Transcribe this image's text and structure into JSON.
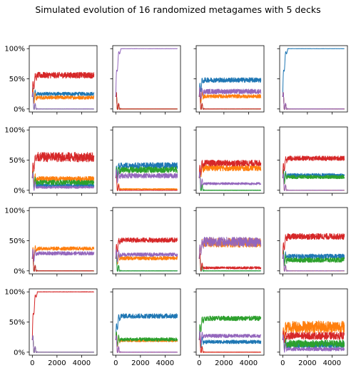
{
  "title": "Simulated evolution of 16 randomized metagames with 5 decks",
  "colors": {
    "blue": "#1f77b4",
    "orange": "#ff7f0e",
    "green": "#2ca02c",
    "red": "#d62728",
    "purple": "#9467bd"
  },
  "chart_data": {
    "type": "line",
    "layout": "4x4 grid",
    "shared_x": true,
    "shared_y": true,
    "xlim": [
      0,
      5000
    ],
    "ylim": [
      0,
      1
    ],
    "xticks": [
      0,
      2000,
      4000
    ],
    "yticks": [
      0,
      0.5,
      1
    ],
    "ytick_labels": [
      "0%",
      "50%",
      "100%"
    ],
    "grid": false,
    "legend": "none",
    "subplots": [
      {
        "row": 1,
        "col": 1,
        "series": [
          {
            "color": "blue",
            "level": 0.25,
            "noise": 0.03
          },
          {
            "color": "orange",
            "level": 0.19,
            "noise": 0.03
          },
          {
            "color": "green",
            "level": 0.0,
            "noise": 0.003
          },
          {
            "color": "red",
            "level": 0.56,
            "noise": 0.05
          },
          {
            "color": "purple",
            "level": 0.0,
            "noise": 0.003
          }
        ]
      },
      {
        "row": 1,
        "col": 2,
        "series": [
          {
            "color": "blue",
            "level": 0.0,
            "noise": 0.002
          },
          {
            "color": "orange",
            "level": 0.0,
            "noise": 0.002
          },
          {
            "color": "green",
            "level": 0.0,
            "noise": 0.002
          },
          {
            "color": "red",
            "level": 0.0,
            "noise": 0.002
          },
          {
            "color": "purple",
            "level": 1.0,
            "noise": 0.002
          }
        ]
      },
      {
        "row": 1,
        "col": 3,
        "series": [
          {
            "color": "blue",
            "level": 0.48,
            "noise": 0.04
          },
          {
            "color": "orange",
            "level": 0.21,
            "noise": 0.03
          },
          {
            "color": "green",
            "level": 0.0,
            "noise": 0.003
          },
          {
            "color": "red",
            "level": 0.0,
            "noise": 0.003
          },
          {
            "color": "purple",
            "level": 0.29,
            "noise": 0.04
          }
        ]
      },
      {
        "row": 1,
        "col": 4,
        "series": [
          {
            "color": "blue",
            "level": 1.0,
            "noise": 0.002
          },
          {
            "color": "orange",
            "level": 0.0,
            "noise": 0.002
          },
          {
            "color": "green",
            "level": 0.0,
            "noise": 0.002
          },
          {
            "color": "red",
            "level": 0.0,
            "noise": 0.002
          },
          {
            "color": "purple",
            "level": 0.0,
            "noise": 0.003
          }
        ]
      },
      {
        "row": 2,
        "col": 1,
        "series": [
          {
            "color": "blue",
            "level": 0.08,
            "noise": 0.03
          },
          {
            "color": "orange",
            "level": 0.19,
            "noise": 0.04
          },
          {
            "color": "green",
            "level": 0.13,
            "noise": 0.04
          },
          {
            "color": "red",
            "level": 0.55,
            "noise": 0.08
          },
          {
            "color": "purple",
            "level": 0.05,
            "noise": 0.02
          }
        ]
      },
      {
        "row": 2,
        "col": 2,
        "series": [
          {
            "color": "blue",
            "level": 0.41,
            "noise": 0.05
          },
          {
            "color": "orange",
            "level": 0.02,
            "noise": 0.01
          },
          {
            "color": "green",
            "level": 0.34,
            "noise": 0.05
          },
          {
            "color": "red",
            "level": 0.0,
            "noise": 0.003
          },
          {
            "color": "purple",
            "level": 0.24,
            "noise": 0.04
          }
        ]
      },
      {
        "row": 2,
        "col": 3,
        "series": [
          {
            "color": "blue",
            "level": 0.0,
            "noise": 0.003
          },
          {
            "color": "orange",
            "level": 0.37,
            "noise": 0.05
          },
          {
            "color": "green",
            "level": 0.0,
            "noise": 0.004
          },
          {
            "color": "red",
            "level": 0.45,
            "noise": 0.05
          },
          {
            "color": "purple",
            "level": 0.11,
            "noise": 0.02
          }
        ]
      },
      {
        "row": 2,
        "col": 4,
        "series": [
          {
            "color": "blue",
            "level": 0.25,
            "noise": 0.03
          },
          {
            "color": "orange",
            "level": 0.0,
            "noise": 0.003
          },
          {
            "color": "green",
            "level": 0.22,
            "noise": 0.03
          },
          {
            "color": "red",
            "level": 0.53,
            "noise": 0.04
          },
          {
            "color": "purple",
            "level": 0.0,
            "noise": 0.003
          }
        ]
      },
      {
        "row": 3,
        "col": 1,
        "series": [
          {
            "color": "blue",
            "level": 0.0,
            "noise": 0.003
          },
          {
            "color": "orange",
            "level": 0.37,
            "noise": 0.03
          },
          {
            "color": "green",
            "level": 0.0,
            "noise": 0.003
          },
          {
            "color": "red",
            "level": 0.0,
            "noise": 0.003
          },
          {
            "color": "purple",
            "level": 0.29,
            "noise": 0.03
          }
        ]
      },
      {
        "row": 3,
        "col": 2,
        "series": [
          {
            "color": "blue",
            "level": 0.0,
            "noise": 0.003
          },
          {
            "color": "orange",
            "level": 0.21,
            "noise": 0.03
          },
          {
            "color": "green",
            "level": 0.0,
            "noise": 0.003
          },
          {
            "color": "red",
            "level": 0.51,
            "noise": 0.04
          },
          {
            "color": "purple",
            "level": 0.27,
            "noise": 0.03
          }
        ]
      },
      {
        "row": 3,
        "col": 3,
        "series": [
          {
            "color": "blue",
            "level": 0.0,
            "noise": 0.003
          },
          {
            "color": "orange",
            "level": 0.47,
            "noise": 0.08
          },
          {
            "color": "green",
            "level": 0.0,
            "noise": 0.003
          },
          {
            "color": "red",
            "level": 0.05,
            "noise": 0.02
          },
          {
            "color": "purple",
            "level": 0.48,
            "noise": 0.08
          }
        ]
      },
      {
        "row": 3,
        "col": 4,
        "series": [
          {
            "color": "blue",
            "level": 0.24,
            "noise": 0.04
          },
          {
            "color": "orange",
            "level": 0.0,
            "noise": 0.003
          },
          {
            "color": "green",
            "level": 0.18,
            "noise": 0.04
          },
          {
            "color": "red",
            "level": 0.57,
            "noise": 0.05
          },
          {
            "color": "purple",
            "level": 0.0,
            "noise": 0.003
          }
        ]
      },
      {
        "row": 4,
        "col": 1,
        "series": [
          {
            "color": "blue",
            "level": 0.0,
            "noise": 0.002
          },
          {
            "color": "orange",
            "level": 0.0,
            "noise": 0.002
          },
          {
            "color": "green",
            "level": 0.0,
            "noise": 0.002
          },
          {
            "color": "red",
            "level": 1.0,
            "noise": 0.003
          },
          {
            "color": "purple",
            "level": 0.0,
            "noise": 0.002
          }
        ]
      },
      {
        "row": 4,
        "col": 2,
        "series": [
          {
            "color": "blue",
            "level": 0.6,
            "noise": 0.04
          },
          {
            "color": "orange",
            "level": 0.19,
            "noise": 0.02
          },
          {
            "color": "green",
            "level": 0.21,
            "noise": 0.03
          },
          {
            "color": "red",
            "level": 0.0,
            "noise": 0.003
          },
          {
            "color": "purple",
            "level": 0.0,
            "noise": 0.003
          }
        ]
      },
      {
        "row": 4,
        "col": 3,
        "series": [
          {
            "color": "blue",
            "level": 0.17,
            "noise": 0.03
          },
          {
            "color": "orange",
            "level": 0.0,
            "noise": 0.003
          },
          {
            "color": "green",
            "level": 0.56,
            "noise": 0.04
          },
          {
            "color": "red",
            "level": 0.0,
            "noise": 0.003
          },
          {
            "color": "purple",
            "level": 0.27,
            "noise": 0.03
          }
        ]
      },
      {
        "row": 4,
        "col": 4,
        "series": [
          {
            "color": "blue",
            "level": 0.12,
            "noise": 0.05
          },
          {
            "color": "orange",
            "level": 0.42,
            "noise": 0.1
          },
          {
            "color": "green",
            "level": 0.14,
            "noise": 0.06
          },
          {
            "color": "red",
            "level": 0.27,
            "noise": 0.06
          },
          {
            "color": "purple",
            "level": 0.05,
            "noise": 0.03
          }
        ]
      }
    ]
  }
}
